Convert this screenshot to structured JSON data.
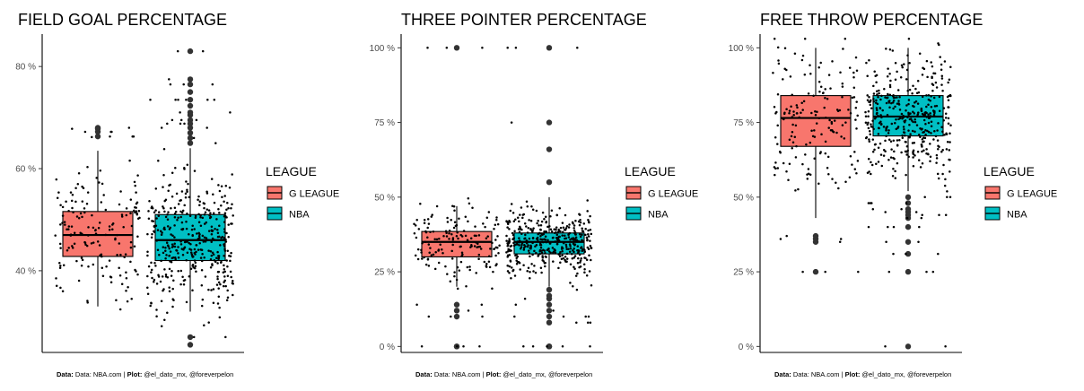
{
  "chart_data": [
    {
      "type": "box",
      "title": "FIELD GOAL PERCENTAGE",
      "xlabel": "",
      "ylabel": "",
      "categories": [
        "G LEAGUE",
        "NBA"
      ],
      "ylim": [
        24,
        86
      ],
      "yticks": [
        40,
        60,
        80
      ],
      "tick_labels": [
        "40 %",
        "60 %",
        "80 %"
      ],
      "boxes": [
        {
          "name": "G LEAGUE",
          "whisker_low": 33,
          "q1": 42.8,
          "median": 47,
          "q3": 51.6,
          "whisker_high": 63.5,
          "outliers": [
            66.3,
            67.2,
            67.8,
            68
          ]
        },
        {
          "name": "NBA",
          "whisker_low": 32,
          "q1": 42,
          "median": 46,
          "q3": 51,
          "whisker_high": 64,
          "outliers": [
            25.5,
            27,
            65,
            66,
            67,
            68,
            68.8,
            69.5,
            70.5,
            71,
            72.3,
            73.5,
            75,
            76.5,
            77.5,
            83
          ]
        }
      ],
      "legend": {
        "title": "LEAGUE",
        "entries": [
          "G LEAGUE",
          "NBA"
        ],
        "position": "right"
      },
      "caption": {
        "label1": "Data:",
        "text1": " Data: NBA.com | ",
        "label2": "Plot:",
        "text2": " @el_dato_mx, @foreverpelon"
      }
    },
    {
      "type": "box",
      "title": "THREE POINTER PERCENTAGE",
      "xlabel": "",
      "ylabel": "",
      "categories": [
        "G LEAGUE",
        "NBA"
      ],
      "ylim": [
        -2,
        104
      ],
      "yticks": [
        0,
        25,
        50,
        75,
        100
      ],
      "tick_labels": [
        "0 %",
        "25 %",
        "50 %",
        "75 %",
        "100 %"
      ],
      "boxes": [
        {
          "name": "G LEAGUE",
          "whisker_low": 20,
          "q1": 30,
          "median": 35,
          "q3": 38.5,
          "whisker_high": 47,
          "outliers": [
            0,
            0,
            10,
            12,
            14,
            100
          ]
        },
        {
          "name": "NBA",
          "whisker_low": 20,
          "q1": 31,
          "median": 35,
          "q3": 38,
          "whisker_high": 50,
          "outliers": [
            0,
            0,
            0,
            8,
            10,
            12,
            14,
            16,
            17,
            19,
            55,
            66,
            75,
            100
          ]
        }
      ],
      "legend": {
        "title": "LEAGUE",
        "entries": [
          "G LEAGUE",
          "NBA"
        ],
        "position": "right"
      },
      "caption": {
        "label1": "Data:",
        "text1": " Data: NBA.com | ",
        "label2": "Plot:",
        "text2": " @el_dato_mx, @foreverpelon"
      }
    },
    {
      "type": "box",
      "title": "FREE THROW PERCENTAGE",
      "xlabel": "",
      "ylabel": "",
      "categories": [
        "G LEAGUE",
        "NBA"
      ],
      "ylim": [
        -2,
        104
      ],
      "yticks": [
        0,
        25,
        50,
        75,
        100
      ],
      "tick_labels": [
        "0 %",
        "25 %",
        "50 %",
        "75 %",
        "100 %"
      ],
      "boxes": [
        {
          "name": "G LEAGUE",
          "whisker_low": 43,
          "q1": 67,
          "median": 76.5,
          "q3": 84,
          "whisker_high": 100,
          "outliers": [
            25,
            35,
            36,
            37
          ]
        },
        {
          "name": "NBA",
          "whisker_low": 52,
          "q1": 70.5,
          "median": 77,
          "q3": 84,
          "whisker_high": 100,
          "outliers": [
            0,
            25,
            31,
            35,
            40,
            43,
            44,
            45,
            46,
            48,
            50
          ]
        }
      ],
      "legend": {
        "title": "LEAGUE",
        "entries": [
          "G LEAGUE",
          "NBA"
        ],
        "position": "right"
      },
      "caption": {
        "label1": "Data:",
        "text1": " Data: NBA.com | ",
        "label2": "Plot:",
        "text2": " @el_dato_mx, @foreverpelon"
      }
    }
  ],
  "colors": {
    "g_league": "#F8766D",
    "nba": "#00BFC4",
    "ink": "#000000",
    "outlier": "#333333"
  }
}
